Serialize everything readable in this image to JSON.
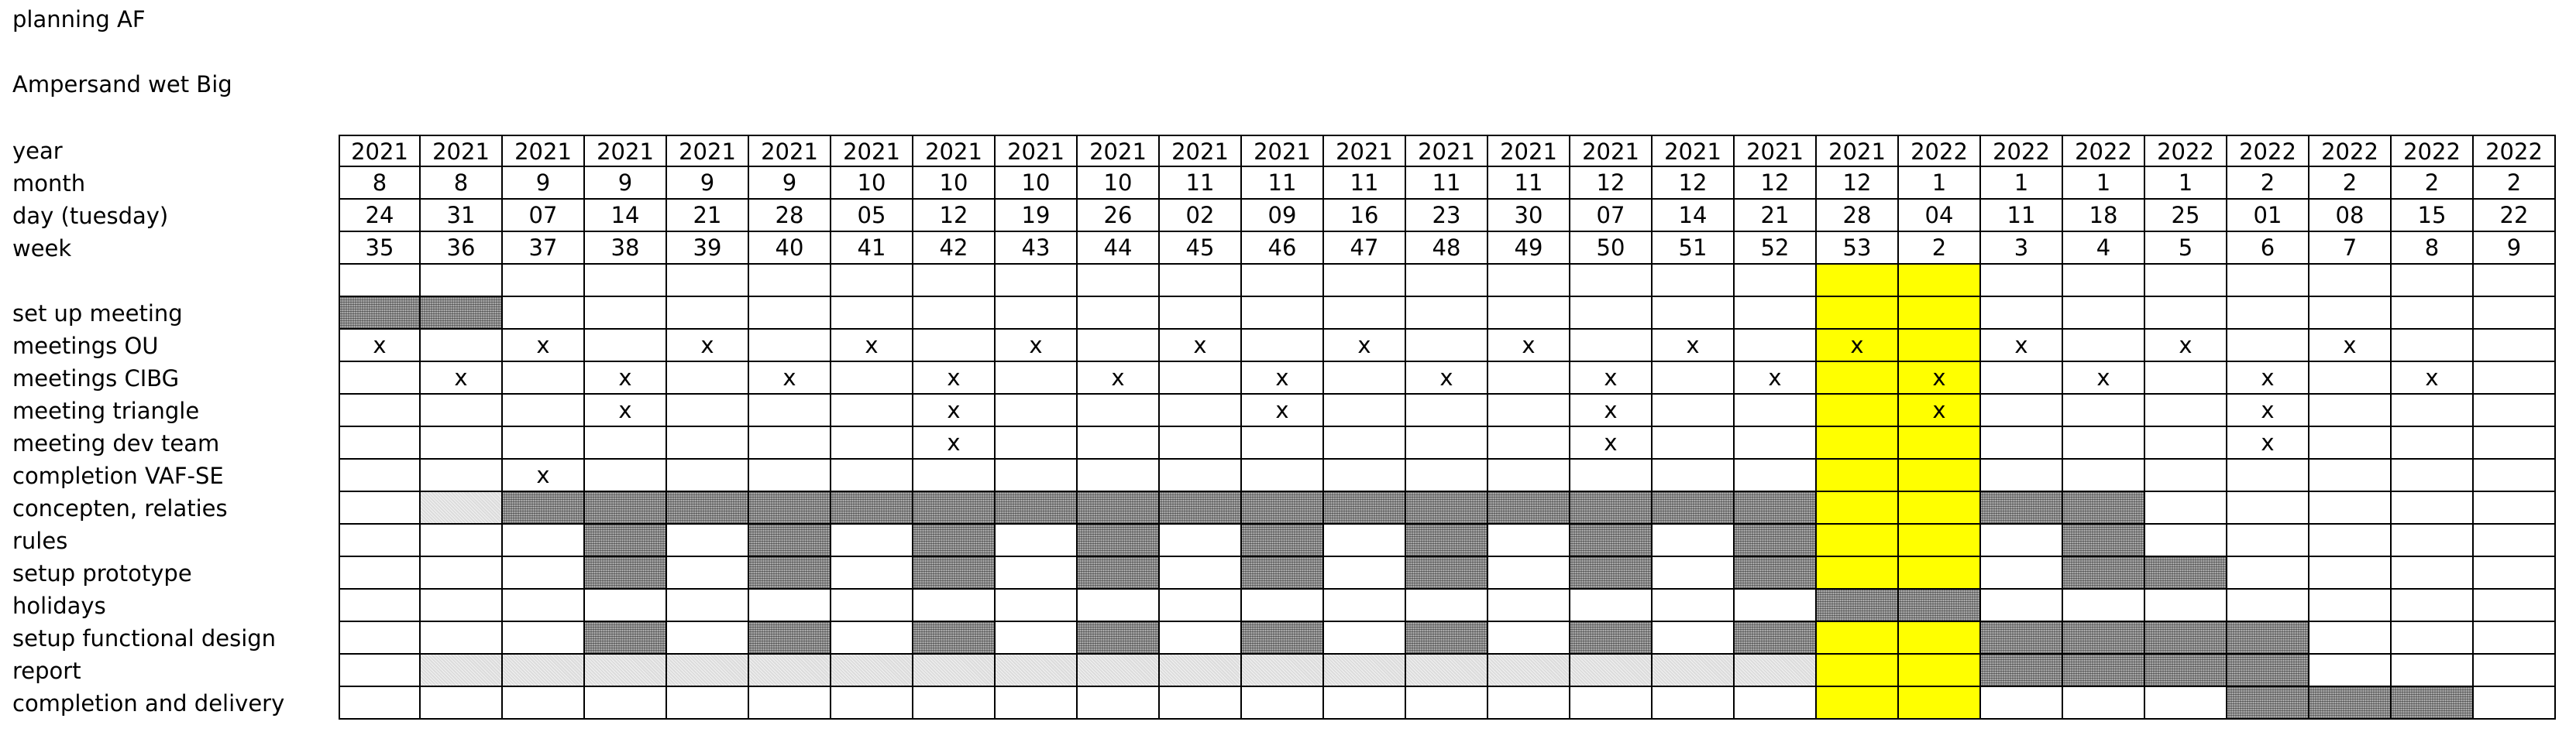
{
  "header": {
    "title": "planning AF",
    "subtitle": "Ampersand wet Big"
  },
  "header_rows": [
    {
      "label": "year",
      "values": [
        "2021",
        "2021",
        "2021",
        "2021",
        "2021",
        "2021",
        "2021",
        "2021",
        "2021",
        "2021",
        "2021",
        "2021",
        "2021",
        "2021",
        "2021",
        "2021",
        "2021",
        "2021",
        "2021",
        "2022",
        "2022",
        "2022",
        "2022",
        "2022",
        "2022",
        "2022",
        "2022"
      ]
    },
    {
      "label": "month",
      "values": [
        "8",
        "8",
        "9",
        "9",
        "9",
        "9",
        "10",
        "10",
        "10",
        "10",
        "11",
        "11",
        "11",
        "11",
        "11",
        "12",
        "12",
        "12",
        "12",
        "1",
        "1",
        "1",
        "1",
        "2",
        "2",
        "2",
        "2"
      ]
    },
    {
      "label": "day (tuesday)",
      "values": [
        "24",
        "31",
        "07",
        "14",
        "21",
        "28",
        "05",
        "12",
        "19",
        "26",
        "02",
        "09",
        "16",
        "23",
        "30",
        "07",
        "14",
        "21",
        "28",
        "04",
        "11",
        "18",
        "25",
        "01",
        "08",
        "15",
        "22"
      ]
    },
    {
      "label": "week",
      "values": [
        "35",
        "36",
        "37",
        "38",
        "39",
        "40",
        "41",
        "42",
        "43",
        "44",
        "45",
        "46",
        "47",
        "48",
        "49",
        "50",
        "51",
        "52",
        "53",
        "2",
        "3",
        "4",
        "5",
        "6",
        "7",
        "8",
        "9"
      ]
    }
  ],
  "highlight_columns": [
    18,
    19
  ],
  "tasks": [
    {
      "label": "set up meeting",
      "marks": {},
      "filled": [
        0,
        1
      ],
      "light": []
    },
    {
      "label": "meetings OU",
      "marks": {
        "0": "x",
        "2": "x",
        "4": "x",
        "6": "x",
        "8": "x",
        "10": "x",
        "12": "x",
        "14": "x",
        "16": "x",
        "18": "x",
        "20": "x",
        "22": "x",
        "24": "x"
      },
      "filled": [],
      "light": []
    },
    {
      "label": "meetings CIBG",
      "marks": {
        "1": "x",
        "3": "x",
        "5": "x",
        "7": "x",
        "9": "x",
        "11": "x",
        "13": "x",
        "15": "x",
        "17": "x",
        "19": "x",
        "21": "x",
        "23": "x",
        "25": "x"
      },
      "filled": [],
      "light": []
    },
    {
      "label": "meeting triangle",
      "marks": {
        "3": "x",
        "7": "x",
        "11": "x",
        "15": "x",
        "19": "x",
        "23": "x"
      },
      "filled": [],
      "light": []
    },
    {
      "label": "meeting dev team",
      "marks": {
        "7": "x",
        "15": "x",
        "23": "x"
      },
      "filled": [],
      "light": []
    },
    {
      "label": "completion VAF-SE",
      "marks": {
        "2": "x"
      },
      "filled": [],
      "light": []
    },
    {
      "label": "concepten, relaties",
      "marks": {},
      "filled": [
        2,
        3,
        4,
        5,
        6,
        7,
        8,
        9,
        10,
        11,
        12,
        13,
        14,
        15,
        16,
        17,
        20,
        21
      ],
      "light": [
        1
      ]
    },
    {
      "label": "rules",
      "marks": {},
      "filled": [
        3,
        5,
        7,
        9,
        11,
        13,
        15,
        17,
        21
      ],
      "light": []
    },
    {
      "label": "setup prototype",
      "marks": {},
      "filled": [
        3,
        5,
        7,
        9,
        11,
        13,
        15,
        17,
        21,
        22
      ],
      "light": []
    },
    {
      "label": "holidays",
      "marks": {},
      "filled": [
        18,
        19
      ],
      "light": []
    },
    {
      "label": "setup functional design",
      "marks": {},
      "filled": [
        3,
        5,
        7,
        9,
        11,
        13,
        15,
        17,
        20,
        21,
        22,
        23
      ],
      "light": []
    },
    {
      "label": "report",
      "marks": {},
      "filled": [
        20,
        21,
        22,
        23
      ],
      "light": [
        1,
        2,
        3,
        4,
        5,
        6,
        7,
        8,
        9,
        10,
        11,
        12,
        13,
        14,
        15,
        16,
        17
      ]
    },
    {
      "label": "completion and delivery",
      "marks": {},
      "filled": [
        23,
        24,
        25
      ],
      "light": []
    }
  ]
}
